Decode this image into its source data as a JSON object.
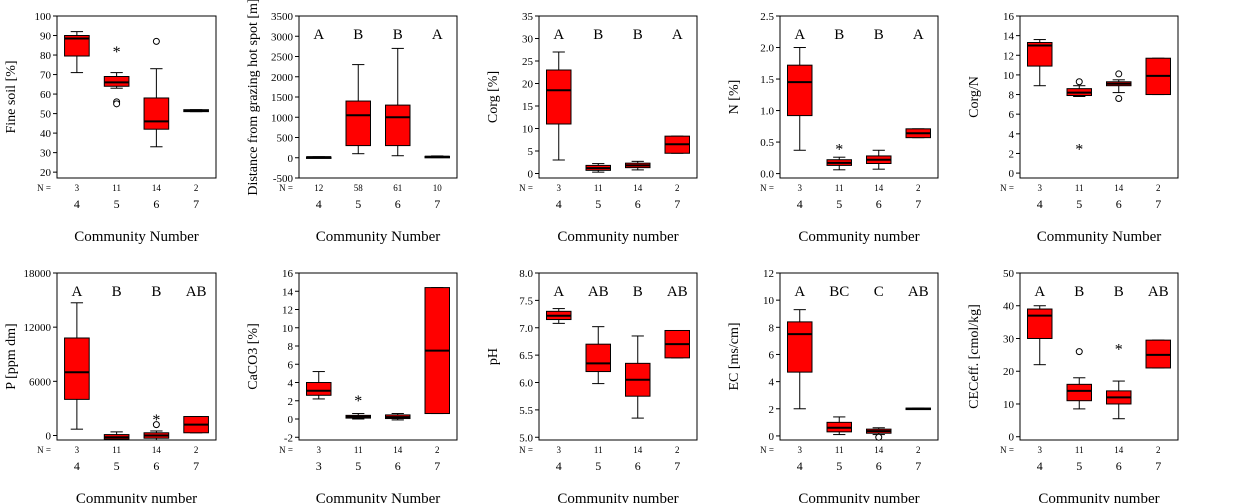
{
  "chart_data": [
    {
      "type": "box",
      "ylabel": "Fine soil [%]",
      "xlabel": "Community Number",
      "yticks": [
        20,
        30,
        40,
        50,
        60,
        70,
        80,
        90,
        100
      ],
      "ylim": [
        17,
        100
      ],
      "n_label": "N =",
      "categories": [
        "4",
        "5",
        "6",
        "7"
      ],
      "n": [
        "3",
        "11",
        "14",
        "2"
      ],
      "letters": [],
      "boxes": [
        {
          "min": 71,
          "q1": 79.5,
          "median": 88.5,
          "q3": 90,
          "max": 92,
          "outliers": []
        },
        {
          "min": 63,
          "q1": 64,
          "median": 66,
          "q3": 69,
          "max": 71,
          "outliers": [
            {
              "v": 82,
              "m": "star"
            },
            {
              "v": 56,
              "m": "circle"
            },
            {
              "v": 55,
              "m": "circle"
            }
          ]
        },
        {
          "min": 33,
          "q1": 42,
          "median": 46,
          "q3": 58,
          "max": 73,
          "outliers": [
            {
              "v": 87,
              "m": "circle"
            }
          ]
        },
        {
          "min": 51,
          "q1": 51,
          "median": 51.5,
          "q3": 52,
          "max": 52,
          "outliers": []
        }
      ]
    },
    {
      "type": "box",
      "ylabel": "Distance from grazing hot spot [m]",
      "xlabel": "Community Number",
      "yticks": [
        -500,
        0,
        500,
        1000,
        1500,
        2000,
        2500,
        3000,
        3500
      ],
      "ylim": [
        -500,
        3500
      ],
      "n_label": "N =",
      "categories": [
        "4",
        "5",
        "6",
        "7"
      ],
      "n": [
        "12",
        "58",
        "61",
        "10"
      ],
      "letters": [
        "A",
        "B",
        "B",
        "A"
      ],
      "boxes": [
        {
          "min": 5,
          "q1": 10,
          "median": 15,
          "q3": 20,
          "max": 25,
          "outliers": []
        },
        {
          "min": 100,
          "q1": 300,
          "median": 1050,
          "q3": 1400,
          "max": 2300,
          "outliers": []
        },
        {
          "min": 50,
          "q1": 300,
          "median": 1000,
          "q3": 1300,
          "max": 2700,
          "outliers": []
        },
        {
          "min": 5,
          "q1": 15,
          "median": 25,
          "q3": 35,
          "max": 45,
          "outliers": []
        }
      ]
    },
    {
      "type": "box",
      "ylabel": "Corg [%]",
      "xlabel": "Community number",
      "yticks": [
        0,
        5,
        10,
        15,
        20,
        25,
        30,
        35
      ],
      "ylim": [
        -1,
        35
      ],
      "n_label": "N =",
      "categories": [
        "4",
        "5",
        "6",
        "7"
      ],
      "n": [
        "3",
        "11",
        "14",
        "2"
      ],
      "letters": [
        "A",
        "B",
        "B",
        "A"
      ],
      "boxes": [
        {
          "min": 3,
          "q1": 11,
          "median": 18.5,
          "q3": 23,
          "max": 27,
          "outliers": []
        },
        {
          "min": 0.3,
          "q1": 0.7,
          "median": 1.2,
          "q3": 1.8,
          "max": 2.2,
          "outliers": []
        },
        {
          "min": 0.8,
          "q1": 1.3,
          "median": 1.8,
          "q3": 2.3,
          "max": 2.7,
          "outliers": []
        },
        {
          "min": 4.5,
          "q1": 4.5,
          "median": 6.5,
          "q3": 8.3,
          "max": 8.3,
          "outliers": []
        }
      ]
    },
    {
      "type": "box",
      "ylabel": "N [%]",
      "xlabel": "Community number",
      "yticks": [
        0.0,
        0.5,
        1.0,
        1.5,
        2.0,
        2.5
      ],
      "tick_decimals": 1,
      "ylim": [
        -0.07,
        2.5
      ],
      "n_label": "N =",
      "categories": [
        "4",
        "5",
        "6",
        "7"
      ],
      "n": [
        "3",
        "11",
        "14",
        "2"
      ],
      "letters": [
        "A",
        "B",
        "B",
        "A"
      ],
      "boxes": [
        {
          "min": 0.37,
          "q1": 0.92,
          "median": 1.45,
          "q3": 1.72,
          "max": 2.0,
          "outliers": []
        },
        {
          "min": 0.06,
          "q1": 0.13,
          "median": 0.17,
          "q3": 0.22,
          "max": 0.26,
          "outliers": [
            {
              "v": 0.4,
              "m": "star"
            }
          ]
        },
        {
          "min": 0.07,
          "q1": 0.16,
          "median": 0.22,
          "q3": 0.28,
          "max": 0.37,
          "outliers": []
        },
        {
          "min": 0.57,
          "q1": 0.57,
          "median": 0.64,
          "q3": 0.71,
          "max": 0.71,
          "outliers": []
        }
      ]
    },
    {
      "type": "box",
      "ylabel": "Corg/N",
      "xlabel": "Community Number",
      "yticks": [
        0,
        2,
        4,
        6,
        8,
        10,
        12,
        14,
        16
      ],
      "ylim": [
        -0.5,
        16
      ],
      "n_label": "N =",
      "categories": [
        "4",
        "5",
        "6",
        "7"
      ],
      "n": [
        "3",
        "11",
        "14",
        "2"
      ],
      "letters": [],
      "boxes": [
        {
          "min": 8.9,
          "q1": 10.9,
          "median": 13.0,
          "q3": 13.3,
          "max": 13.6,
          "outliers": []
        },
        {
          "min": 7.8,
          "q1": 7.9,
          "median": 8.2,
          "q3": 8.6,
          "max": 8.9,
          "outliers": [
            {
              "v": 9.3,
              "m": "circle"
            },
            {
              "v": 2.5,
              "m": "star"
            }
          ]
        },
        {
          "min": 8.2,
          "q1": 8.9,
          "median": 9.1,
          "q3": 9.3,
          "max": 9.5,
          "outliers": [
            {
              "v": 10.1,
              "m": "circle"
            },
            {
              "v": 7.6,
              "m": "circle"
            }
          ]
        },
        {
          "min": 8.0,
          "q1": 8.0,
          "median": 9.9,
          "q3": 11.7,
          "max": 11.7,
          "outliers": []
        }
      ]
    },
    {
      "type": "box",
      "ylabel": "P [ppm dm]",
      "xlabel": "Community number",
      "yticks": [
        0,
        6000,
        12000,
        18000
      ],
      "ylim": [
        -500,
        18000
      ],
      "n_label": "N =",
      "categories": [
        "4",
        "5",
        "6",
        "7"
      ],
      "n": [
        "3",
        "11",
        "14",
        "2"
      ],
      "letters": [
        "A",
        "B",
        "B",
        "AB"
      ],
      "boxes": [
        {
          "min": 700,
          "q1": 4000,
          "median": 7000,
          "q3": 10800,
          "max": 14700,
          "outliers": []
        },
        {
          "min": -500,
          "q1": -400,
          "median": -200,
          "q3": 100,
          "max": 400,
          "outliers": []
        },
        {
          "min": -500,
          "q1": -300,
          "median": 0,
          "q3": 300,
          "max": 500,
          "outliers": [
            {
              "v": 1800,
              "m": "star"
            },
            {
              "v": 1200,
              "m": "circle"
            }
          ]
        },
        {
          "min": 300,
          "q1": 300,
          "median": 1200,
          "q3": 2100,
          "max": 2100,
          "outliers": []
        }
      ]
    },
    {
      "type": "box",
      "ylabel": "CaCO3 [%]",
      "xlabel": "Community Number",
      "yticks": [
        -2,
        0,
        2,
        4,
        6,
        8,
        10,
        12,
        14,
        16
      ],
      "ylim": [
        -2.3,
        16
      ],
      "n_label": "N =",
      "categories": [
        "3",
        "5",
        "6",
        "7"
      ],
      "n": [
        "3",
        "11",
        "14",
        "2"
      ],
      "letters": [],
      "boxes": [
        {
          "min": 2.2,
          "q1": 2.6,
          "median": 3.1,
          "q3": 4.0,
          "max": 5.2,
          "outliers": []
        },
        {
          "min": 0.0,
          "q1": 0.1,
          "median": 0.25,
          "q3": 0.4,
          "max": 0.6,
          "outliers": [
            {
              "v": 2.1,
              "m": "star"
            }
          ]
        },
        {
          "min": -0.1,
          "q1": 0.05,
          "median": 0.2,
          "q3": 0.45,
          "max": 0.6,
          "outliers": []
        },
        {
          "min": 0.6,
          "q1": 0.6,
          "median": 7.5,
          "q3": 14.4,
          "max": 14.4,
          "outliers": []
        }
      ]
    },
    {
      "type": "box",
      "ylabel": "pH",
      "xlabel": "Community number",
      "yticks": [
        5.0,
        5.5,
        6.0,
        6.5,
        7.0,
        7.5,
        8.0
      ],
      "tick_decimals": 1,
      "ylim": [
        4.95,
        8.0
      ],
      "n_label": "N =",
      "categories": [
        "4",
        "5",
        "6",
        "7"
      ],
      "n": [
        "3",
        "11",
        "14",
        "2"
      ],
      "letters": [
        "A",
        "AB",
        "B",
        "AB"
      ],
      "boxes": [
        {
          "min": 7.08,
          "q1": 7.15,
          "median": 7.22,
          "q3": 7.3,
          "max": 7.35,
          "outliers": []
        },
        {
          "min": 5.98,
          "q1": 6.2,
          "median": 6.35,
          "q3": 6.7,
          "max": 7.02,
          "outliers": []
        },
        {
          "min": 5.35,
          "q1": 5.75,
          "median": 6.05,
          "q3": 6.35,
          "max": 6.85,
          "outliers": []
        },
        {
          "min": 6.45,
          "q1": 6.45,
          "median": 6.7,
          "q3": 6.95,
          "max": 6.95,
          "outliers": []
        }
      ]
    },
    {
      "type": "box",
      "ylabel": "EC [ms/cm]",
      "xlabel": "Community number",
      "yticks": [
        0,
        2,
        4,
        6,
        8,
        10,
        12
      ],
      "ylim": [
        -0.3,
        12
      ],
      "n_label": "N =",
      "categories": [
        "4",
        "5",
        "6",
        "7"
      ],
      "n": [
        "3",
        "11",
        "14",
        "2"
      ],
      "letters": [
        "A",
        "BC",
        "C",
        "AB"
      ],
      "boxes": [
        {
          "min": 2.0,
          "q1": 4.7,
          "median": 7.5,
          "q3": 8.4,
          "max": 9.3,
          "outliers": []
        },
        {
          "min": 0.1,
          "q1": 0.3,
          "median": 0.6,
          "q3": 1.0,
          "max": 1.4,
          "outliers": []
        },
        {
          "min": 0.1,
          "q1": 0.2,
          "median": 0.35,
          "q3": 0.5,
          "max": 0.6,
          "outliers": [
            {
              "v": -0.1,
              "m": "circle"
            }
          ]
        },
        {
          "min": 1.95,
          "q1": 1.95,
          "median": 2.0,
          "q3": 2.05,
          "max": 2.05,
          "outliers": []
        }
      ]
    },
    {
      "type": "box",
      "ylabel": "CECeff. [cmol/kg]",
      "xlabel": "Community number",
      "yticks": [
        0,
        10,
        20,
        30,
        40,
        50
      ],
      "ylim": [
        -1,
        50
      ],
      "n_label": "N =",
      "categories": [
        "4",
        "5",
        "6",
        "7"
      ],
      "n": [
        "3",
        "11",
        "14",
        "2"
      ],
      "letters": [
        "A",
        "B",
        "B",
        "AB"
      ],
      "boxes": [
        {
          "min": 22,
          "q1": 30,
          "median": 37,
          "q3": 39,
          "max": 40,
          "outliers": []
        },
        {
          "min": 8.5,
          "q1": 11,
          "median": 14,
          "q3": 16,
          "max": 18,
          "outliers": [
            {
              "v": 26,
              "m": "circle"
            }
          ]
        },
        {
          "min": 5.5,
          "q1": 10,
          "median": 12,
          "q3": 14,
          "max": 17,
          "outliers": [
            {
              "v": 27,
              "m": "star"
            }
          ]
        },
        {
          "min": 21,
          "q1": 21,
          "median": 25,
          "q3": 29.5,
          "max": 29.5,
          "outliers": []
        }
      ]
    }
  ]
}
